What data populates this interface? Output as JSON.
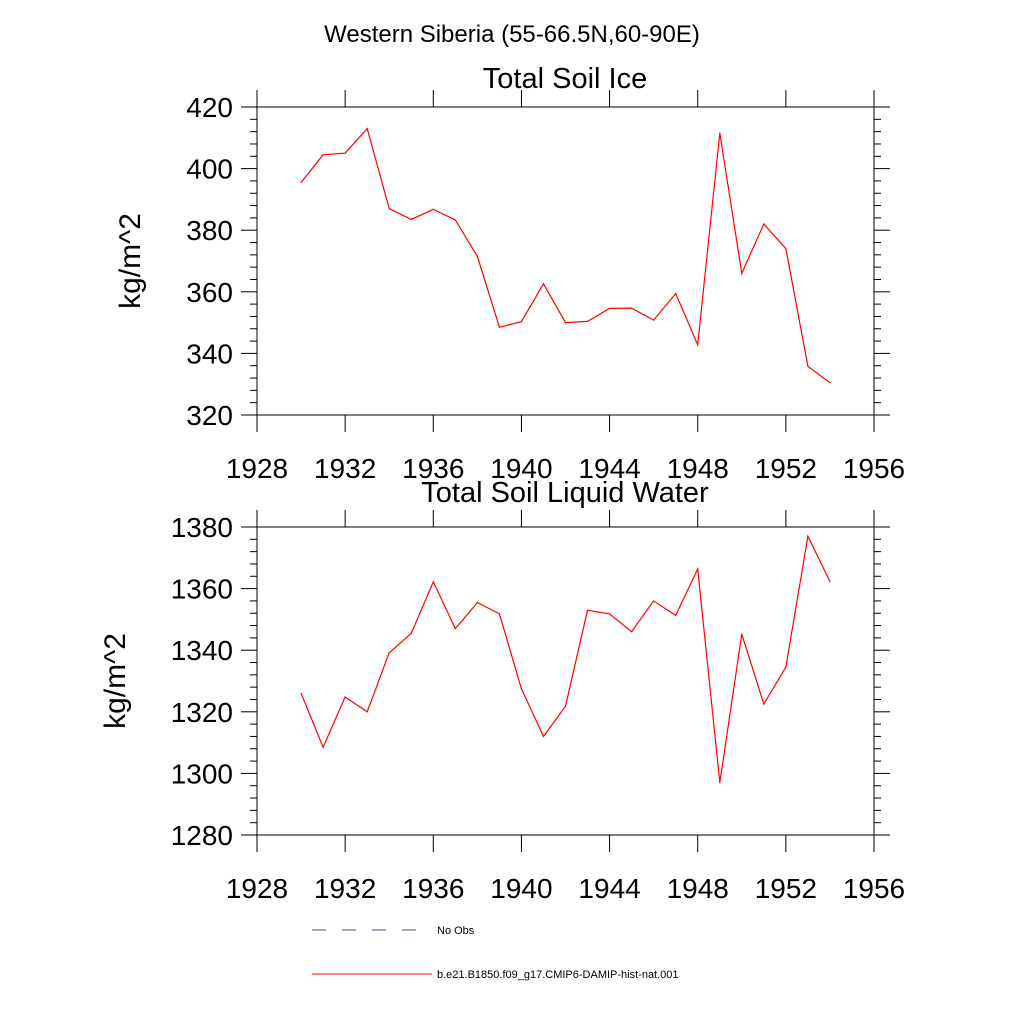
{
  "figure_title": "Western Siberia (55-66.5N,60-90E)",
  "chart_data": [
    {
      "type": "line",
      "title": "Total Soil Ice",
      "xlabel": "",
      "ylabel": "kg/m^2",
      "xlim": [
        1928,
        1956
      ],
      "ylim": [
        320,
        420
      ],
      "xticks": [
        1928,
        1932,
        1936,
        1940,
        1944,
        1948,
        1952,
        1956
      ],
      "yticks": [
        320,
        340,
        360,
        380,
        400,
        420
      ],
      "x": [
        1930,
        1931,
        1932,
        1933,
        1934,
        1935,
        1936,
        1937,
        1938,
        1939,
        1940,
        1941,
        1942,
        1943,
        1944,
        1945,
        1946,
        1947,
        1948,
        1949,
        1950,
        1951,
        1952,
        1953,
        1954
      ],
      "series": [
        {
          "name": "b.e21.B1850.f09_g17.CMIP6-DAMIP-hist-nat.001",
          "color": "#ff0000",
          "values": [
            395.5,
            404.5,
            405.0,
            413.0,
            387.0,
            383.5,
            386.8,
            383.3,
            371.5,
            348.5,
            350.3,
            362.6,
            350.0,
            350.4,
            354.6,
            354.7,
            350.8,
            359.4,
            342.8,
            411.5,
            366.0,
            382.0,
            374.0,
            335.8,
            330.5
          ]
        }
      ]
    },
    {
      "type": "line",
      "title": "Total Soil Liquid Water",
      "xlabel": "",
      "ylabel": "kg/m^2",
      "xlim": [
        1928,
        1956
      ],
      "ylim": [
        1280,
        1380
      ],
      "xticks": [
        1928,
        1932,
        1936,
        1940,
        1944,
        1948,
        1952,
        1956
      ],
      "yticks": [
        1280,
        1300,
        1320,
        1340,
        1360,
        1380
      ],
      "x": [
        1930,
        1931,
        1932,
        1933,
        1934,
        1935,
        1936,
        1937,
        1938,
        1939,
        1940,
        1941,
        1942,
        1943,
        1944,
        1945,
        1946,
        1947,
        1948,
        1949,
        1950,
        1951,
        1952,
        1953,
        1954
      ],
      "series": [
        {
          "name": "b.e21.B1850.f09_g17.CMIP6-DAMIP-hist-nat.001",
          "color": "#ff0000",
          "values": [
            1326.0,
            1308.5,
            1324.8,
            1320.0,
            1339.2,
            1345.5,
            1362.2,
            1347.0,
            1355.5,
            1351.8,
            1327.5,
            1312.0,
            1321.8,
            1353.0,
            1351.8,
            1346.0,
            1356.0,
            1351.3,
            1366.4,
            1297.0,
            1345.2,
            1322.5,
            1334.5,
            1377.0,
            1362.3
          ]
        }
      ]
    }
  ],
  "legend": [
    {
      "label": "No Obs",
      "color": "#4a4a7a",
      "style": "dashed"
    },
    {
      "label": "b.e21.B1850.f09_g17.CMIP6-DAMIP-hist-nat.001",
      "color": "#ff0000",
      "style": "solid"
    }
  ]
}
